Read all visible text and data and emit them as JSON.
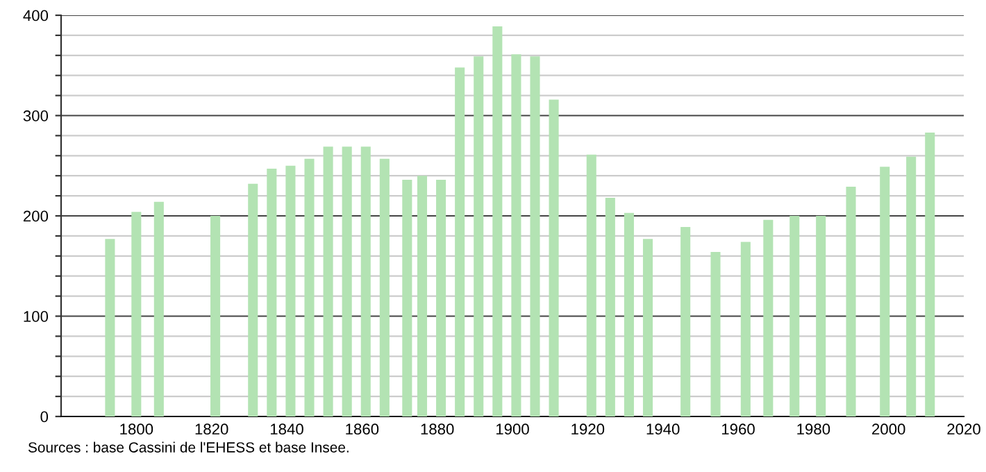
{
  "chart_data": {
    "type": "bar",
    "x": [
      1793,
      1800,
      1806,
      1821,
      1831,
      1836,
      1841,
      1846,
      1851,
      1856,
      1861,
      1866,
      1872,
      1876,
      1881,
      1886,
      1891,
      1896,
      1901,
      1906,
      1911,
      1921,
      1926,
      1931,
      1936,
      1946,
      1954,
      1962,
      1968,
      1975,
      1982,
      1990,
      1999,
      2006,
      2011
    ],
    "values": [
      177,
      204,
      214,
      200,
      232,
      247,
      250,
      257,
      269,
      269,
      269,
      257,
      236,
      240,
      236,
      348,
      359,
      389,
      361,
      359,
      316,
      261,
      218,
      203,
      177,
      189,
      164,
      174,
      196,
      200,
      200,
      229,
      249,
      259,
      283
    ],
    "color": "#b3e3b3",
    "xlim": [
      1780,
      2020
    ],
    "xticks": [
      1800,
      1820,
      1840,
      1860,
      1880,
      1900,
      1920,
      1940,
      1960,
      1980,
      2000,
      2020
    ],
    "ylim": [
      0,
      400
    ],
    "yticks": [
      0,
      {
        "value": 20,
        "label": null
      },
      {
        "value": 40,
        "label": null
      },
      {
        "value": 60,
        "label": null
      },
      {
        "value": 80,
        "label": null
      },
      100,
      {
        "value": 120,
        "label": null
      },
      {
        "value": 140,
        "label": null
      },
      {
        "value": 160,
        "label": null
      },
      {
        "value": 180,
        "label": null
      },
      200,
      {
        "value": 220,
        "label": null
      },
      {
        "value": 240,
        "label": null
      },
      {
        "value": 260,
        "label": null
      },
      {
        "value": 280,
        "label": null
      },
      300,
      {
        "value": 320,
        "label": null
      },
      {
        "value": 340,
        "label": null
      },
      {
        "value": 360,
        "label": null
      },
      {
        "value": 380,
        "label": null
      },
      400
    ],
    "grid": "y",
    "annotations": [
      "Sources : base Cassini de l'EHESS et base Insee."
    ]
  }
}
